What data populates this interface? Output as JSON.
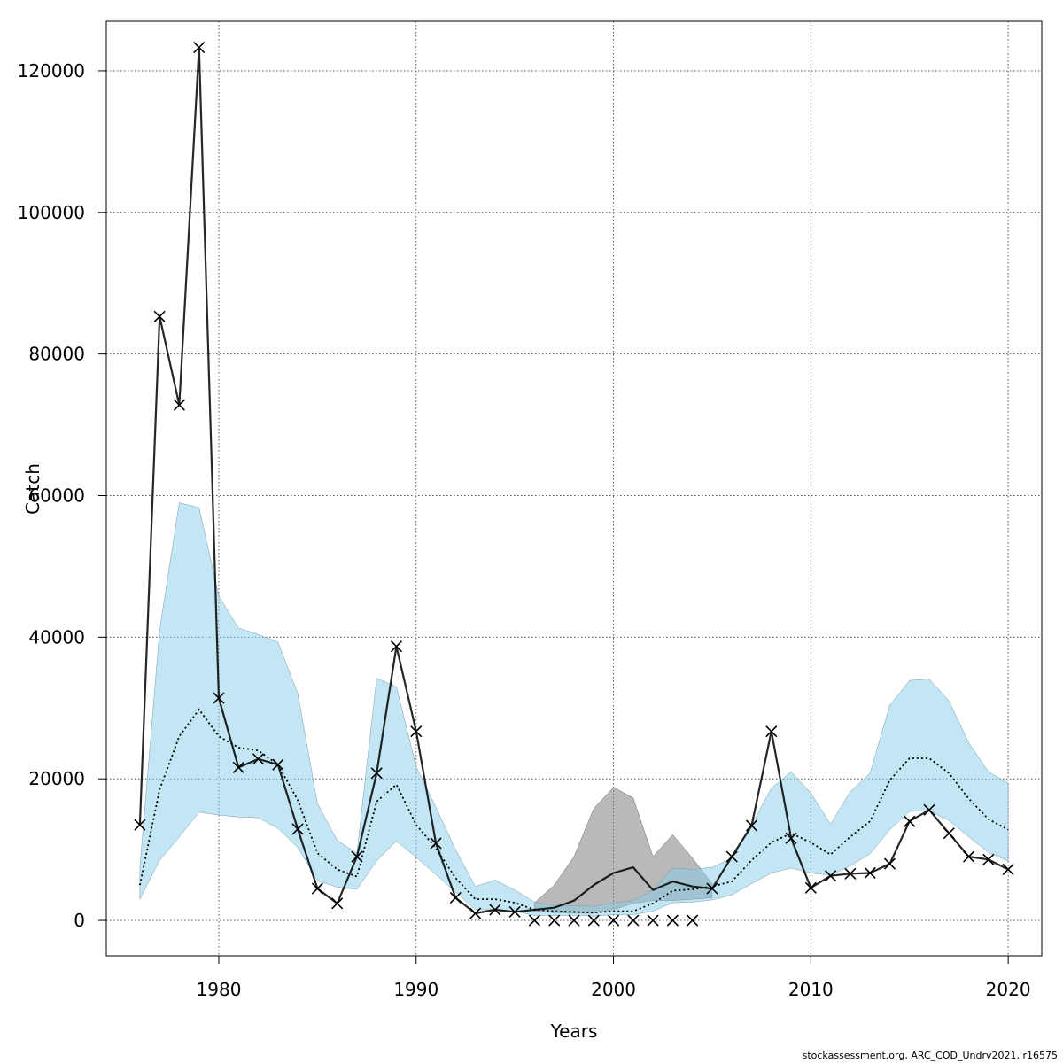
{
  "chart_data": {
    "type": "line",
    "xlabel": "Years",
    "ylabel": "Catch",
    "xlim": [
      1974.3,
      2021.7
    ],
    "ylim": [
      -5000,
      127000
    ],
    "x_ticks": [
      1980,
      1990,
      2000,
      2010,
      2020
    ],
    "y_ticks": [
      0,
      20000,
      40000,
      60000,
      80000,
      100000,
      120000
    ],
    "grid": true,
    "colors": {
      "band_blue": "#87ceeb",
      "band_grey": "#808080",
      "line": "#000000",
      "grid": "#555555"
    },
    "observed": {
      "x": [
        1976,
        1977,
        1978,
        1979,
        1980,
        1981,
        1982,
        1983,
        1984,
        1985,
        1986,
        1987,
        1988,
        1989,
        1990,
        1991,
        1992,
        1993,
        1994,
        1995,
        1996,
        1997,
        1998,
        1999,
        2000,
        2001,
        2002,
        2003,
        2004,
        2005,
        2006,
        2007,
        2008,
        2009,
        2010,
        2011,
        2012,
        2013,
        2014,
        2015,
        2016,
        2017,
        2018,
        2019,
        2020
      ],
      "y": [
        13500,
        85300,
        72800,
        123300,
        31400,
        21600,
        22800,
        22000,
        12900,
        4500,
        2400,
        9000,
        20800,
        38700,
        26700,
        10900,
        3200,
        1000,
        1500,
        1200,
        0,
        0,
        0,
        0,
        0,
        0,
        0,
        0,
        0,
        4500,
        9000,
        13400,
        26700,
        11600,
        4600,
        6300,
        6600,
        6700,
        8000,
        14000,
        15600,
        12300,
        9000,
        8600,
        7200
      ]
    },
    "fit_line": {
      "x": [
        1976,
        1977,
        1978,
        1979,
        1980,
        1981,
        1982,
        1983,
        1984,
        1985,
        1986,
        1987,
        1988,
        1989,
        1990,
        1991,
        1992,
        1993,
        1994,
        1995,
        1996,
        1997,
        1998,
        1999,
        2000,
        2001,
        2002,
        2003,
        2004,
        2005,
        2006,
        2007,
        2008,
        2009,
        2010,
        2011,
        2012,
        2013,
        2014,
        2015,
        2016,
        2017,
        2018,
        2019,
        2020
      ],
      "y": [
        13500,
        85300,
        72800,
        123300,
        31400,
        21600,
        22800,
        22000,
        12900,
        4500,
        2400,
        9000,
        20800,
        38700,
        26700,
        10900,
        3200,
        1000,
        1500,
        1200,
        1500,
        1800,
        2800,
        5000,
        6700,
        7500,
        4300,
        5500,
        4800,
        4500,
        9000,
        13400,
        26700,
        11600,
        4600,
        6300,
        6600,
        6700,
        8000,
        14000,
        15600,
        12300,
        9000,
        8600,
        7200
      ]
    },
    "predicted": {
      "x": [
        1976,
        1977,
        1978,
        1979,
        1980,
        1981,
        1982,
        1983,
        1984,
        1985,
        1986,
        1987,
        1988,
        1989,
        1990,
        1991,
        1992,
        1993,
        1994,
        1995,
        1996,
        1997,
        1998,
        1999,
        2000,
        2001,
        2002,
        2003,
        2004,
        2005,
        2006,
        2007,
        2008,
        2009,
        2010,
        2011,
        2012,
        2013,
        2014,
        2015,
        2016,
        2017,
        2018,
        2019,
        2020
      ],
      "y": [
        5000,
        18500,
        26000,
        29800,
        26000,
        24400,
        24000,
        22000,
        17000,
        9500,
        7200,
        6200,
        16800,
        19200,
        13500,
        10200,
        6000,
        3000,
        3000,
        2500,
        1500,
        1300,
        1200,
        1100,
        1300,
        1300,
        2400,
        4200,
        4400,
        4800,
        5500,
        8500,
        11000,
        12300,
        11000,
        9300,
        11800,
        14000,
        19800,
        22900,
        22900,
        20800,
        17200,
        14300,
        12800
      ]
    },
    "predicted_band": {
      "x": [
        1976,
        1977,
        1978,
        1979,
        1980,
        1981,
        1982,
        1983,
        1984,
        1985,
        1986,
        1987,
        1988,
        1989,
        1990,
        1991,
        1992,
        1993,
        1994,
        1995,
        1996,
        1997,
        1998,
        1999,
        2000,
        2001,
        2002,
        2003,
        2004,
        2005,
        2006,
        2007,
        2008,
        2009,
        2010,
        2011,
        2012,
        2013,
        2014,
        2015,
        2016,
        2017,
        2018,
        2019,
        2020
      ],
      "lower": [
        3000,
        8500,
        11800,
        15300,
        14900,
        14600,
        14500,
        13000,
        10300,
        5600,
        4700,
        4400,
        8400,
        11200,
        8900,
        6500,
        4000,
        1500,
        1500,
        1300,
        700,
        700,
        700,
        600,
        800,
        800,
        1300,
        2500,
        2600,
        2900,
        3600,
        5200,
        6700,
        7400,
        6700,
        6400,
        7700,
        9400,
        12800,
        15400,
        15500,
        14100,
        11800,
        9600,
        8400
      ],
      "upper": [
        7500,
        41000,
        59000,
        58300,
        45800,
        41300,
        40400,
        39300,
        32100,
        16500,
        11300,
        9500,
        34200,
        33000,
        21700,
        16000,
        10000,
        4800,
        5700,
        4300,
        2600,
        2100,
        2100,
        2000,
        2500,
        2800,
        4300,
        7400,
        7200,
        7500,
        8800,
        13500,
        18700,
        21000,
        18000,
        13600,
        18200,
        20800,
        30400,
        33900,
        34100,
        31000,
        25100,
        21000,
        19400
      ]
    },
    "unobserved_band": {
      "x": [
        1996,
        1997,
        1998,
        1999,
        2000,
        2001,
        2002,
        2003,
        2004,
        2005
      ],
      "lower": [
        1300,
        1100,
        1000,
        1000,
        1500,
        2400,
        2800,
        2800,
        3000,
        3200
      ],
      "upper": [
        2500,
        5000,
        9000,
        15800,
        18800,
        17300,
        9000,
        12100,
        8800,
        5200
      ]
    }
  },
  "footnote": "stockassessment.org, ARC_COD_Undrv2021, r16575"
}
